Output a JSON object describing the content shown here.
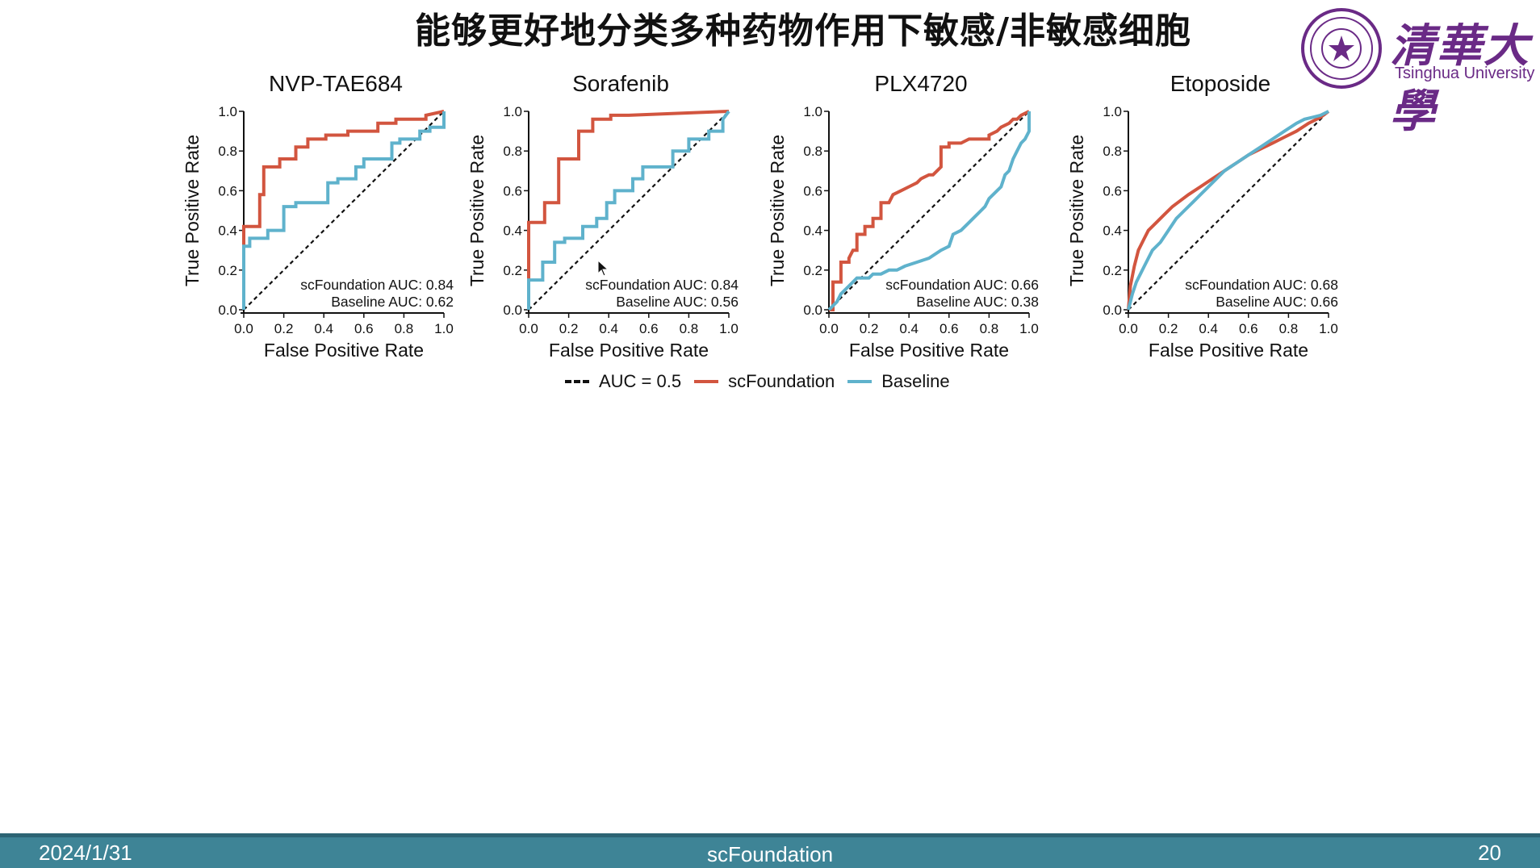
{
  "slide": {
    "title": "能够更好地分类多种药物作用下敏感/非敏感细胞"
  },
  "logo": {
    "cn_text": "清華大學",
    "en_text": "Tsinghua University",
    "color": "#6a2a86"
  },
  "legend": {
    "items": [
      {
        "label": "AUC = 0.5",
        "style": "dashed",
        "color": "#111111"
      },
      {
        "label": "scFoundation",
        "style": "solid",
        "color": "#d2553f"
      },
      {
        "label": "Baseline",
        "style": "solid",
        "color": "#5fb2cc"
      }
    ]
  },
  "footer": {
    "date": "2024/1/31",
    "center": "scFoundation",
    "page": "20"
  },
  "colors": {
    "scfoundation": "#d2553f",
    "baseline": "#5fb2cc",
    "diagonal": "#111111",
    "footer_bg": "#3e8496"
  },
  "chart_data": [
    {
      "type": "line",
      "title": "NVP-TAE684",
      "xlabel": "False Positive Rate",
      "ylabel": "True Positive Rate",
      "xlim": [
        0,
        1
      ],
      "ylim": [
        0,
        1
      ],
      "xticks": [
        "0.0",
        "0.2",
        "0.4",
        "0.6",
        "0.8",
        "1.0"
      ],
      "yticks": [
        "0.0",
        "0.2",
        "0.4",
        "0.6",
        "0.8",
        "1.0"
      ],
      "annotations": [
        "scFoundation AUC: 0.84",
        "Baseline AUC: 0.62"
      ],
      "series": [
        {
          "name": "scFoundation",
          "x": [
            0,
            0,
            0.08,
            0.08,
            0.1,
            0.1,
            0.18,
            0.18,
            0.26,
            0.26,
            0.32,
            0.32,
            0.41,
            0.41,
            0.52,
            0.52,
            0.67,
            0.67,
            0.76,
            0.76,
            0.91,
            0.91,
            1
          ],
          "y": [
            0,
            0.42,
            0.42,
            0.58,
            0.58,
            0.72,
            0.72,
            0.76,
            0.76,
            0.82,
            0.82,
            0.86,
            0.86,
            0.88,
            0.88,
            0.9,
            0.9,
            0.94,
            0.94,
            0.96,
            0.96,
            0.98,
            1
          ]
        },
        {
          "name": "Baseline",
          "x": [
            0,
            0,
            0.03,
            0.03,
            0.12,
            0.12,
            0.2,
            0.2,
            0.26,
            0.26,
            0.42,
            0.42,
            0.47,
            0.47,
            0.56,
            0.56,
            0.6,
            0.6,
            0.74,
            0.74,
            0.78,
            0.78,
            0.88,
            0.88,
            0.93,
            0.93,
            1,
            1
          ],
          "y": [
            0,
            0.32,
            0.32,
            0.36,
            0.36,
            0.4,
            0.4,
            0.52,
            0.52,
            0.54,
            0.54,
            0.64,
            0.64,
            0.66,
            0.66,
            0.72,
            0.72,
            0.76,
            0.76,
            0.84,
            0.84,
            0.86,
            0.86,
            0.9,
            0.9,
            0.92,
            0.92,
            1
          ]
        }
      ]
    },
    {
      "type": "line",
      "title": "Sorafenib",
      "xlabel": "False Positive Rate",
      "ylabel": "True Positive Rate",
      "xlim": [
        0,
        1
      ],
      "ylim": [
        0,
        1
      ],
      "xticks": [
        "0.0",
        "0.2",
        "0.4",
        "0.6",
        "0.8",
        "1.0"
      ],
      "yticks": [
        "0.0",
        "0.2",
        "0.4",
        "0.6",
        "0.8",
        "1.0"
      ],
      "annotations": [
        "scFoundation AUC: 0.84",
        "Baseline AUC: 0.56"
      ],
      "series": [
        {
          "name": "scFoundation",
          "x": [
            0,
            0,
            0.08,
            0.08,
            0.15,
            0.15,
            0.25,
            0.25,
            0.32,
            0.32,
            0.41,
            0.41,
            0.5,
            0.5,
            1
          ],
          "y": [
            0,
            0.44,
            0.44,
            0.54,
            0.54,
            0.76,
            0.76,
            0.9,
            0.9,
            0.96,
            0.96,
            0.98,
            0.98,
            0.98,
            1
          ]
        },
        {
          "name": "Baseline",
          "x": [
            0,
            0,
            0.07,
            0.07,
            0.13,
            0.13,
            0.18,
            0.18,
            0.27,
            0.27,
            0.34,
            0.34,
            0.39,
            0.39,
            0.43,
            0.43,
            0.52,
            0.52,
            0.57,
            0.57,
            0.72,
            0.72,
            0.8,
            0.8,
            0.9,
            0.9,
            0.97,
            0.97,
            1
          ],
          "y": [
            0,
            0.15,
            0.15,
            0.24,
            0.24,
            0.34,
            0.34,
            0.36,
            0.36,
            0.42,
            0.42,
            0.46,
            0.46,
            0.54,
            0.54,
            0.6,
            0.6,
            0.66,
            0.66,
            0.72,
            0.72,
            0.8,
            0.8,
            0.86,
            0.86,
            0.9,
            0.9,
            0.96,
            1
          ]
        }
      ]
    },
    {
      "type": "line",
      "title": "PLX4720",
      "xlabel": "False Positive Rate",
      "ylabel": "True Positive Rate",
      "xlim": [
        0,
        1
      ],
      "ylim": [
        0,
        1
      ],
      "xticks": [
        "0.0",
        "0.2",
        "0.4",
        "0.6",
        "0.8",
        "1.0"
      ],
      "yticks": [
        "0.0",
        "0.2",
        "0.4",
        "0.6",
        "0.8",
        "1.0"
      ],
      "annotations": [
        "scFoundation AUC: 0.66",
        "Baseline AUC: 0.38"
      ],
      "series": [
        {
          "name": "scFoundation",
          "x": [
            0,
            0.02,
            0.02,
            0.06,
            0.06,
            0.1,
            0.1,
            0.12,
            0.14,
            0.14,
            0.18,
            0.18,
            0.22,
            0.22,
            0.26,
            0.26,
            0.3,
            0.32,
            0.36,
            0.4,
            0.44,
            0.46,
            0.5,
            0.52,
            0.56,
            0.56,
            0.6,
            0.6,
            0.66,
            0.7,
            0.8,
            0.8,
            0.84,
            0.86,
            0.9,
            0.92,
            0.94,
            0.96,
            1
          ],
          "y": [
            0,
            0,
            0.14,
            0.14,
            0.24,
            0.24,
            0.26,
            0.3,
            0.3,
            0.38,
            0.38,
            0.42,
            0.42,
            0.46,
            0.46,
            0.54,
            0.54,
            0.58,
            0.6,
            0.62,
            0.64,
            0.66,
            0.68,
            0.68,
            0.72,
            0.82,
            0.82,
            0.84,
            0.84,
            0.86,
            0.86,
            0.88,
            0.9,
            0.92,
            0.94,
            0.96,
            0.96,
            0.98,
            1
          ]
        },
        {
          "name": "Baseline",
          "x": [
            0,
            0.04,
            0.06,
            0.1,
            0.12,
            0.14,
            0.2,
            0.22,
            0.26,
            0.3,
            0.34,
            0.38,
            0.44,
            0.5,
            0.56,
            0.6,
            0.62,
            0.66,
            0.7,
            0.72,
            0.76,
            0.78,
            0.8,
            0.84,
            0.86,
            0.88,
            0.9,
            0.92,
            0.94,
            0.96,
            0.98,
            1,
            1
          ],
          "y": [
            0,
            0.04,
            0.08,
            0.12,
            0.14,
            0.16,
            0.16,
            0.18,
            0.18,
            0.2,
            0.2,
            0.22,
            0.24,
            0.26,
            0.3,
            0.32,
            0.38,
            0.4,
            0.44,
            0.46,
            0.5,
            0.52,
            0.56,
            0.6,
            0.62,
            0.68,
            0.7,
            0.76,
            0.8,
            0.84,
            0.86,
            0.9,
            1
          ]
        }
      ]
    },
    {
      "type": "line",
      "title": "Etoposide",
      "xlabel": "False Positive Rate",
      "ylabel": "True Positive Rate",
      "xlim": [
        0,
        1
      ],
      "ylim": [
        0,
        1
      ],
      "xticks": [
        "0.0",
        "0.2",
        "0.4",
        "0.6",
        "0.8",
        "1.0"
      ],
      "yticks": [
        "0.0",
        "0.2",
        "0.4",
        "0.6",
        "0.8",
        "1.0"
      ],
      "annotations": [
        "scFoundation AUC: 0.68",
        "Baseline AUC: 0.66"
      ],
      "series": [
        {
          "name": "scFoundation",
          "x": [
            0,
            0.01,
            0.03,
            0.05,
            0.08,
            0.1,
            0.14,
            0.18,
            0.22,
            0.26,
            0.3,
            0.36,
            0.42,
            0.48,
            0.54,
            0.6,
            0.66,
            0.72,
            0.78,
            0.84,
            0.9,
            0.96,
            1
          ],
          "y": [
            0,
            0.12,
            0.22,
            0.3,
            0.36,
            0.4,
            0.44,
            0.48,
            0.52,
            0.55,
            0.58,
            0.62,
            0.66,
            0.7,
            0.74,
            0.78,
            0.81,
            0.84,
            0.87,
            0.9,
            0.94,
            0.97,
            1
          ]
        },
        {
          "name": "Baseline",
          "x": [
            0,
            0.02,
            0.04,
            0.06,
            0.08,
            0.1,
            0.12,
            0.16,
            0.2,
            0.24,
            0.28,
            0.32,
            0.36,
            0.42,
            0.48,
            0.54,
            0.6,
            0.66,
            0.72,
            0.78,
            0.84,
            0.88,
            0.92,
            0.96,
            1
          ],
          "y": [
            0,
            0.08,
            0.14,
            0.18,
            0.22,
            0.26,
            0.3,
            0.34,
            0.4,
            0.46,
            0.5,
            0.54,
            0.58,
            0.64,
            0.7,
            0.74,
            0.78,
            0.82,
            0.86,
            0.9,
            0.94,
            0.96,
            0.97,
            0.98,
            1
          ]
        }
      ]
    }
  ]
}
